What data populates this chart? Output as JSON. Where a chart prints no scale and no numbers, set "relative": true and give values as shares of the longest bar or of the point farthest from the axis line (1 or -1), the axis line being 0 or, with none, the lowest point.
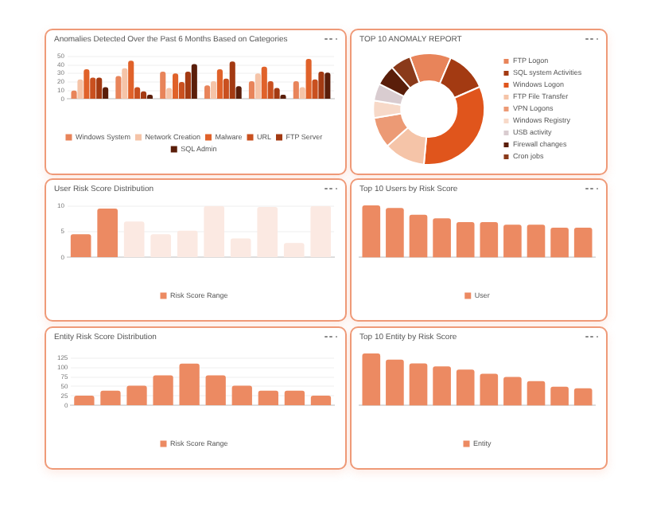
{
  "chart_data": [
    {
      "type": "bar",
      "title": "Anomalies Detected Over the Past 6 Months Based on Categories",
      "categories": [
        null,
        null,
        null,
        null,
        null,
        null
      ],
      "ylim": [
        0,
        50
      ],
      "yticks": [
        0,
        10,
        20,
        30,
        40,
        50
      ],
      "grid": "y",
      "legend": "bottom",
      "series": [
        {
          "name": "Windows System",
          "color": "#e8845a",
          "values": [
            10,
            27,
            32,
            16,
            21,
            21
          ]
        },
        {
          "name": "Network Creation",
          "color": "#f5c4a8",
          "values": [
            23,
            36,
            13,
            21,
            30,
            14
          ]
        },
        {
          "name": "Malware",
          "color": "#e0622a",
          "values": [
            35,
            45,
            30,
            35,
            38,
            47
          ]
        },
        {
          "name": "URL",
          "color": "#c9501f",
          "values": [
            25,
            14,
            20,
            24,
            21,
            23
          ]
        },
        {
          "name": "FTP Server",
          "color": "#a33a12",
          "values": [
            25,
            9,
            32,
            44,
            13,
            32
          ]
        },
        {
          "name": "SQL Admin",
          "color": "#5a1e0a",
          "values": [
            14,
            5,
            41,
            15,
            5,
            31
          ]
        }
      ]
    },
    {
      "type": "donut",
      "title": "TOP 10 ANOMALY REPORT",
      "legend": "right",
      "categories": [
        "FTP Logon",
        "SQL system Activities",
        "Windows Logon",
        "FTP File Transfer",
        "VPN Logons",
        "Windows Registry",
        "USB activity",
        "Firewall changes",
        "Cron jobs"
      ],
      "values": [
        12,
        12,
        33,
        12,
        9,
        5,
        5,
        6,
        6
      ],
      "colors": [
        "#e8845a",
        "#a33a12",
        "#e0551c",
        "#f5c4a8",
        "#ec9a75",
        "#f7d9c8",
        "#d9ccd0",
        "#5a1e0a",
        "#8a3a1a"
      ]
    },
    {
      "type": "bar",
      "title": "User Risk Score Distribution",
      "categories": [
        null,
        null,
        null,
        null,
        null,
        null,
        null,
        null,
        null,
        null
      ],
      "ylim": [
        0,
        10
      ],
      "yticks": [
        0,
        5,
        10
      ],
      "grid": "y",
      "legend": "bottom",
      "series": [
        {
          "name": "Risk Score Range",
          "colors": [
            "#ec8a62",
            "#ec8a62",
            "#fbe9e2",
            "#fbe9e2",
            "#fbe9e2",
            "#fbe9e2",
            "#fbe9e2",
            "#fbe9e2",
            "#fbe9e2",
            "#fbe9e2"
          ],
          "values": [
            4.5,
            9.5,
            7,
            4.5,
            5.2,
            10,
            3.7,
            9.8,
            2.8,
            10
          ]
        }
      ]
    },
    {
      "type": "bar",
      "title": "Top 10 Users by Risk Score",
      "relative": true,
      "categories": [
        null,
        null,
        null,
        null,
        null,
        null,
        null,
        null,
        null,
        null
      ],
      "legend": "bottom",
      "series": [
        {
          "name": "User",
          "color": "#ec8a62",
          "values": [
            1,
            0.95,
            0.82,
            0.75,
            0.68,
            0.68,
            0.63,
            0.63,
            0.57,
            0.57
          ]
        }
      ]
    },
    {
      "type": "bar",
      "title": "Entity Risk Score Distribution",
      "categories": [
        null,
        null,
        null,
        null,
        null,
        null,
        null,
        null,
        null,
        null
      ],
      "ylim": [
        0,
        135
      ],
      "yticks": [
        0,
        25,
        50,
        75,
        100,
        125
      ],
      "grid": "y",
      "legend": "bottom",
      "series": [
        {
          "name": "Risk Score Range",
          "color": "#ec8a62",
          "values": [
            26,
            39,
            52,
            79,
            110,
            79,
            52,
            39,
            39,
            26
          ]
        }
      ]
    },
    {
      "type": "bar",
      "title": "Top 10 Entity by Risk Score",
      "relative": true,
      "categories": [
        null,
        null,
        null,
        null,
        null,
        null,
        null,
        null,
        null,
        null
      ],
      "legend": "bottom",
      "series": [
        {
          "name": "Entity",
          "color": "#ec8a62",
          "values": [
            1,
            0.88,
            0.81,
            0.75,
            0.69,
            0.61,
            0.55,
            0.47,
            0.36,
            0.33
          ]
        }
      ]
    }
  ]
}
